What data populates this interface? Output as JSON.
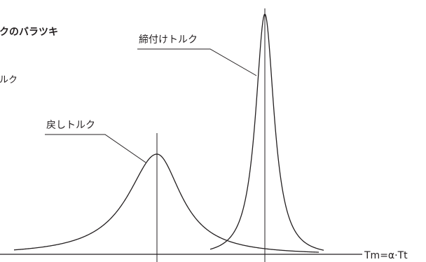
{
  "title": "クのバラツキ",
  "left_partial_label": "ルク",
  "tightening_label": "締付けトルク",
  "return_label": "戻しトルク",
  "axis_label": "Tm=α·Tt"
}
